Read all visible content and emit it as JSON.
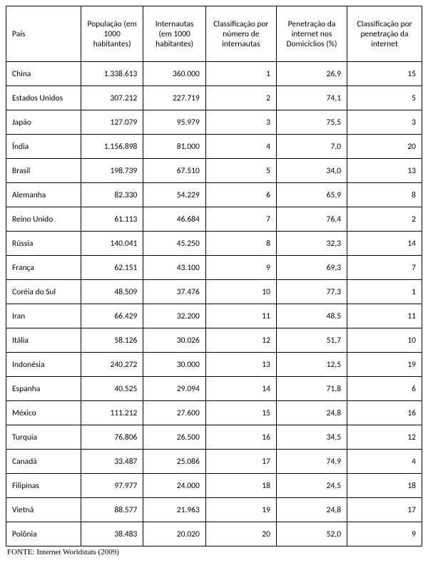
{
  "headers": {
    "country": "País",
    "population": "População (em 1000 habitantes)",
    "internet_users": "Internautas (em 1000 habitantes)",
    "rank_users": "Classificação por número de internautas",
    "penetration": "Penetração da internet nos Domicíclios (%)",
    "rank_penetration": "Classificação por penetração da internet"
  },
  "rows": [
    {
      "country": "China",
      "population": "1.338.613",
      "users": "360.000",
      "rank_users": "1",
      "penetration": "26,9",
      "rank_pen": "15"
    },
    {
      "country": "Estados Unidos",
      "population": "307.212",
      "users": "227.719",
      "rank_users": "2",
      "penetration": "74,1",
      "rank_pen": "5"
    },
    {
      "country": "Japão",
      "population": "127.079",
      "users": "95.979",
      "rank_users": "3",
      "penetration": "75,5",
      "rank_pen": "3"
    },
    {
      "country": "Índia",
      "population": "1.156.898",
      "users": "81.000",
      "rank_users": "4",
      "penetration": "7,0",
      "rank_pen": "20"
    },
    {
      "country": "Brasil",
      "population": "198.739",
      "users": "67.510",
      "rank_users": "5",
      "penetration": "34,0",
      "rank_pen": "13"
    },
    {
      "country": "Alemanha",
      "population": "82.330",
      "users": "54.229",
      "rank_users": "6",
      "penetration": "65,9",
      "rank_pen": "8"
    },
    {
      "country": "Reino Unido",
      "population": "61.113",
      "users": "46.684",
      "rank_users": "7",
      "penetration": "76,4",
      "rank_pen": "2"
    },
    {
      "country": "Rússia",
      "population": "140.041",
      "users": "45.250",
      "rank_users": "8",
      "penetration": "32,3",
      "rank_pen": "14"
    },
    {
      "country": "França",
      "population": "62.151",
      "users": "43.100",
      "rank_users": "9",
      "penetration": "69,3",
      "rank_pen": "7"
    },
    {
      "country": "Coréia do Sul",
      "population": "48.509",
      "users": "37.476",
      "rank_users": "10",
      "penetration": "77,3",
      "rank_pen": "1"
    },
    {
      "country": "Iran",
      "population": "66.429",
      "users": "32.200",
      "rank_users": "11",
      "penetration": "48,5",
      "rank_pen": "11"
    },
    {
      "country": "Itália",
      "population": "58.126",
      "users": "30.026",
      "rank_users": "12",
      "penetration": "51,7",
      "rank_pen": "10"
    },
    {
      "country": "Indonésia",
      "population": "240.272",
      "users": "30.000",
      "rank_users": "13",
      "penetration": "12,5",
      "rank_pen": "19"
    },
    {
      "country": "Espanha",
      "population": "40.525",
      "users": "29.094",
      "rank_users": "14",
      "penetration": "71,8",
      "rank_pen": "6"
    },
    {
      "country": "México",
      "population": "111.212",
      "users": "27.600",
      "rank_users": "15",
      "penetration": "24,8",
      "rank_pen": "16"
    },
    {
      "country": "Turquia",
      "population": "76.806",
      "users": "26.500",
      "rank_users": "16",
      "penetration": "34,5",
      "rank_pen": "12"
    },
    {
      "country": "Canadá",
      "population": "33.487",
      "users": "25.086",
      "rank_users": "17",
      "penetration": "74,9",
      "rank_pen": "4"
    },
    {
      "country": "Filipinas",
      "population": "97.977",
      "users": "24.000",
      "rank_users": "18",
      "penetration": "24,5",
      "rank_pen": "18"
    },
    {
      "country": "Vietnã",
      "population": "88.577",
      "users": "21.963",
      "rank_users": "19",
      "penetration": "24,8",
      "rank_pen": "17"
    },
    {
      "country": "Polônia",
      "population": "38.483",
      "users": "20.020",
      "rank_users": "20",
      "penetration": "52,0",
      "rank_pen": "9"
    }
  ],
  "source": "FONTE: Internet Worldstats (2009)"
}
